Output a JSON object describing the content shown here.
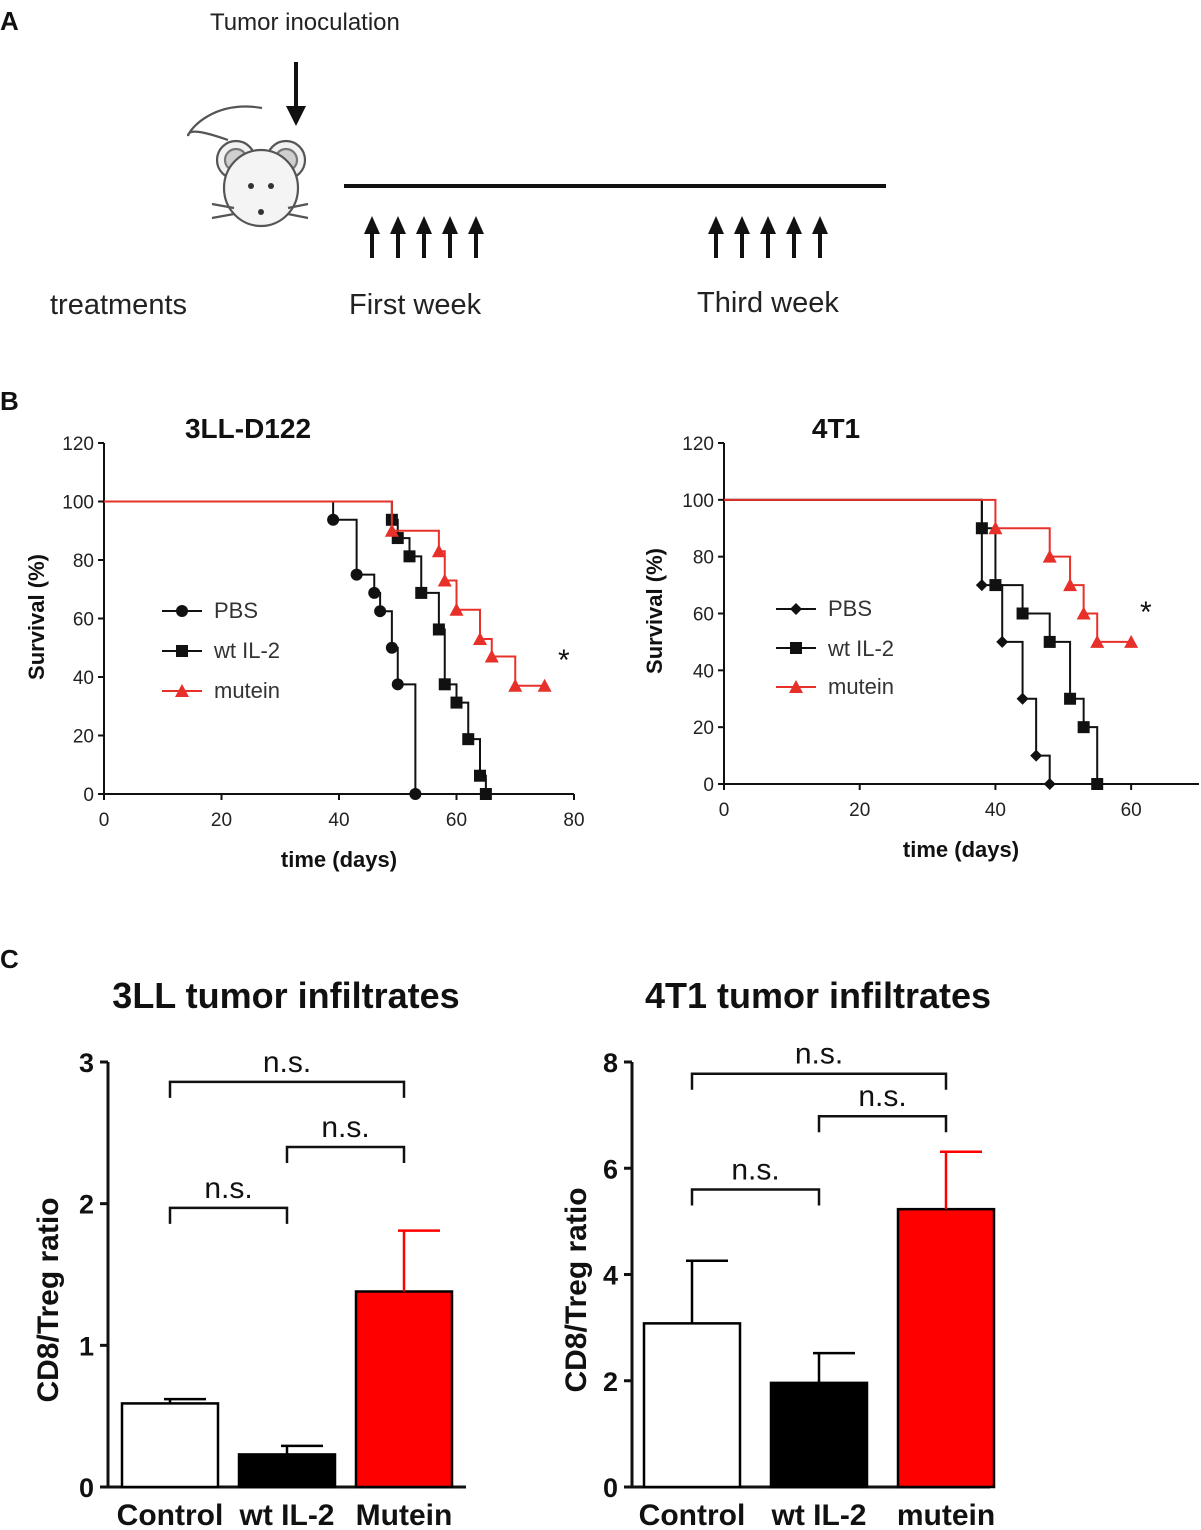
{
  "panel_labels": {
    "a": "A",
    "b": "B",
    "c": "C"
  },
  "colors": {
    "black": "#111111",
    "red": "#ff0000",
    "red_line": "#e8302a",
    "white": "#ffffff"
  },
  "schematic": {
    "inoculation_label": "Tumor inoculation",
    "treatments_label": "treatments",
    "first_week_label": "First week",
    "third_week_label": "Third week",
    "first_week_injections": 5,
    "third_week_injections": 5,
    "icons": [
      "mouse-icon",
      "down-arrow-icon",
      "up-arrow-icon"
    ]
  },
  "chart_data": [
    {
      "id": "survival_3ll",
      "type": "line",
      "title": "3LL-D122",
      "xlabel": "time (days)",
      "ylabel": "Survival (%)",
      "xlim": [
        0,
        80
      ],
      "ylim": [
        0,
        120
      ],
      "xticks": [
        0,
        20,
        40,
        60,
        80
      ],
      "yticks": [
        0,
        20,
        40,
        60,
        80,
        100,
        120
      ],
      "significance": "*",
      "series": [
        {
          "name": "PBS",
          "color": "#111111",
          "marker": "circle",
          "x": [
            0,
            39,
            43,
            46,
            47,
            49,
            50,
            53
          ],
          "y": [
            100,
            93.75,
            75,
            68.75,
            62.5,
            50,
            37.5,
            0
          ]
        },
        {
          "name": "wt IL-2",
          "color": "#111111",
          "marker": "square",
          "x": [
            0,
            49,
            50,
            52,
            54,
            57,
            58,
            60,
            62,
            64,
            65
          ],
          "y": [
            100,
            93.75,
            87.5,
            81.25,
            68.75,
            56.25,
            37.5,
            31.25,
            18.75,
            6.25,
            0
          ]
        },
        {
          "name": "mutein",
          "color": "#e8302a",
          "marker": "triangle",
          "x": [
            0,
            49,
            57,
            58,
            60,
            64,
            66,
            70,
            75
          ],
          "y": [
            100,
            90,
            83,
            73,
            63,
            53,
            47,
            37,
            37
          ]
        }
      ]
    },
    {
      "id": "survival_4t1",
      "type": "line",
      "title": "4T1",
      "xlabel": "time (days)",
      "ylabel": "Survival (%)",
      "xlim": [
        0,
        70
      ],
      "ylim": [
        0,
        120
      ],
      "xticks": [
        0,
        20,
        40,
        60
      ],
      "yticks": [
        0,
        20,
        40,
        60,
        80,
        100,
        120
      ],
      "significance": "*",
      "series": [
        {
          "name": "PBS",
          "color": "#111111",
          "marker": "diamond",
          "x": [
            0,
            38,
            41,
            44,
            46,
            48
          ],
          "y": [
            100,
            70,
            50,
            30,
            10,
            0
          ]
        },
        {
          "name": "wt IL-2",
          "color": "#111111",
          "marker": "square",
          "x": [
            0,
            38,
            40,
            44,
            48,
            51,
            53,
            55
          ],
          "y": [
            100,
            90,
            70,
            60,
            50,
            30,
            20,
            0
          ]
        },
        {
          "name": "mutein",
          "color": "#e8302a",
          "marker": "triangle",
          "x": [
            0,
            40,
            48,
            51,
            53,
            55,
            60
          ],
          "y": [
            100,
            90,
            80,
            70,
            60,
            50,
            50
          ]
        }
      ]
    },
    {
      "id": "bars_3ll",
      "type": "bar",
      "title": "3LL tumor infiltrates",
      "ylabel": "CD8/Treg ratio",
      "ylim": [
        0,
        3
      ],
      "yticks": [
        0,
        1,
        2,
        3
      ],
      "categories": [
        "Control",
        "wt IL-2",
        "Mutein"
      ],
      "values": [
        0.59,
        0.23,
        1.38
      ],
      "errors": [
        0.03,
        0.06,
        0.43
      ],
      "fills": [
        "#ffffff",
        "#000000",
        "#ff0000"
      ],
      "comparisons": [
        {
          "from": 0,
          "to": 2,
          "label": "n.s.",
          "level": 2.86
        },
        {
          "from": 1,
          "to": 2,
          "label": "n.s.",
          "level": 2.4
        },
        {
          "from": 0,
          "to": 1,
          "label": "n.s.",
          "level": 1.97
        }
      ]
    },
    {
      "id": "bars_4t1",
      "type": "bar",
      "title": "4T1 tumor  infiltrates",
      "ylabel": "CD8/Treg ratio",
      "ylim": [
        0,
        8
      ],
      "yticks": [
        0,
        2,
        4,
        6,
        8
      ],
      "categories": [
        "Control",
        "wt IL-2",
        "mutein"
      ],
      "values": [
        3.08,
        1.96,
        5.23
      ],
      "errors": [
        1.18,
        0.56,
        1.08
      ],
      "fills": [
        "#ffffff",
        "#000000",
        "#ff0000"
      ],
      "comparisons": [
        {
          "from": 0,
          "to": 2,
          "label": "n.s.",
          "level": 7.78
        },
        {
          "from": 1,
          "to": 2,
          "label": "n.s.",
          "level": 6.98
        },
        {
          "from": 0,
          "to": 1,
          "label": "n.s.",
          "level": 5.6
        }
      ]
    }
  ]
}
